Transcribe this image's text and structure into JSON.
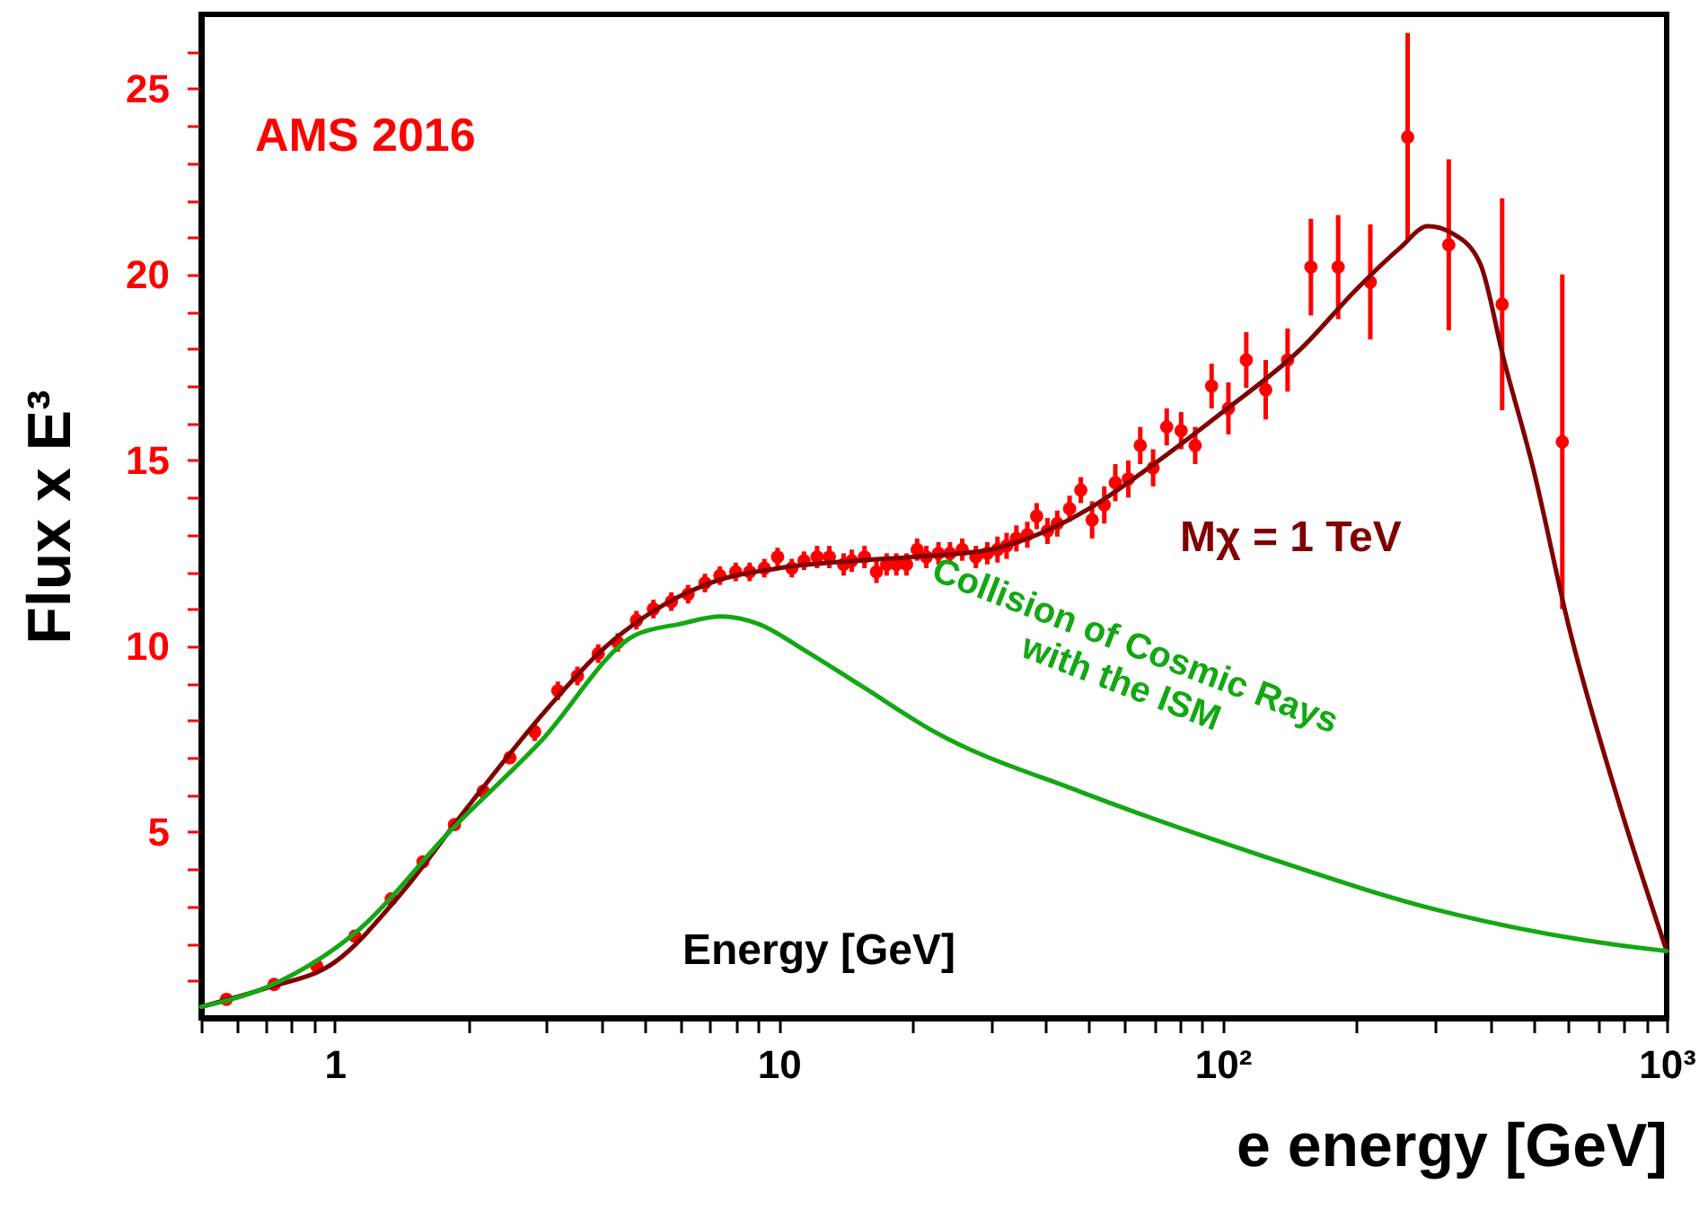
{
  "chart_data": {
    "type": "scatter",
    "xlabel": "e energy [GeV]",
    "ylabel": "Flux x E³",
    "log": "x",
    "grid": false,
    "line_style": "solid",
    "xlim": [
      0.5,
      1000
    ],
    "ylim": [
      0,
      27
    ],
    "xticks": [
      {
        "value": 0.5,
        "label": null
      },
      {
        "value": 0.6,
        "label": null
      },
      {
        "value": 0.7,
        "label": null
      },
      {
        "value": 0.8,
        "label": null
      },
      {
        "value": 0.9,
        "label": null
      },
      1,
      {
        "value": 2,
        "label": null
      },
      {
        "value": 3,
        "label": null
      },
      {
        "value": 4,
        "label": null
      },
      {
        "value": 5,
        "label": null
      },
      {
        "value": 6,
        "label": null
      },
      {
        "value": 7,
        "label": null
      },
      {
        "value": 8,
        "label": null
      },
      {
        "value": 9,
        "label": null
      },
      10,
      {
        "value": 20,
        "label": null
      },
      {
        "value": 30,
        "label": null
      },
      {
        "value": 40,
        "label": null
      },
      {
        "value": 50,
        "label": null
      },
      {
        "value": 60,
        "label": null
      },
      {
        "value": 70,
        "label": null
      },
      {
        "value": 80,
        "label": null
      },
      {
        "value": 90,
        "label": null
      },
      {
        "value": 100,
        "label": "10²"
      },
      {
        "value": 200,
        "label": null
      },
      {
        "value": 300,
        "label": null
      },
      {
        "value": 400,
        "label": null
      },
      {
        "value": 500,
        "label": null
      },
      {
        "value": 600,
        "label": null
      },
      {
        "value": 700,
        "label": null
      },
      {
        "value": 800,
        "label": null
      },
      {
        "value": 900,
        "label": null
      },
      {
        "value": 1000,
        "label": "10³"
      }
    ],
    "yticks": [
      {
        "value": 1,
        "label": null
      },
      {
        "value": 2,
        "label": null
      },
      {
        "value": 3,
        "label": null
      },
      {
        "value": 4,
        "label": null
      },
      5,
      {
        "value": 6,
        "label": null
      },
      {
        "value": 7,
        "label": null
      },
      {
        "value": 8,
        "label": null
      },
      {
        "value": 9,
        "label": null
      },
      10,
      {
        "value": 11,
        "label": null
      },
      {
        "value": 12,
        "label": null
      },
      {
        "value": 13,
        "label": null
      },
      {
        "value": 14,
        "label": null
      },
      15,
      {
        "value": 16,
        "label": null
      },
      {
        "value": 17,
        "label": null
      },
      {
        "value": 18,
        "label": null
      },
      {
        "value": 19,
        "label": null
      },
      20,
      {
        "value": 21,
        "label": null
      },
      {
        "value": 22,
        "label": null
      },
      {
        "value": 23,
        "label": null
      },
      {
        "value": 24,
        "label": null
      },
      25,
      {
        "value": 26,
        "label": null
      }
    ],
    "annotations": [
      "Energy [GeV]"
    ],
    "series": [
      {
        "name": "AMS 2016",
        "type": "scatter",
        "marker": "circle",
        "color": "#ff0000",
        "x": [
          0.57,
          0.73,
          0.91,
          1.11,
          1.34,
          1.58,
          1.86,
          2.16,
          2.48,
          2.82,
          3.18,
          3.52,
          3.92,
          4.34,
          4.78,
          5.22,
          5.73,
          6.25,
          6.82,
          7.37,
          8.0,
          8.6,
          9.28,
          9.94,
          10.7,
          11.4,
          12.2,
          13.0,
          14.0,
          14.6,
          15.6,
          16.6,
          17.5,
          18.4,
          19.4,
          20.5,
          21.5,
          22.9,
          24.3,
          25.9,
          27.8,
          29.5,
          31.1,
          32.6,
          34.3,
          36.3,
          38.1,
          40.3,
          42.4,
          45.2,
          47.9,
          50.8,
          54.1,
          57.3,
          61.3,
          65.2,
          69.7,
          74.8,
          80.6,
          86.7,
          94.4,
          103,
          113,
          125,
          140,
          158,
          182,
          215,
          261,
          323,
          426,
          582
        ],
        "values": [
          0.5,
          0.9,
          1.4,
          2.2,
          3.2,
          4.2,
          5.2,
          6.1,
          7.0,
          7.7,
          8.8,
          9.2,
          9.8,
          10.1,
          10.7,
          11.0,
          11.2,
          11.4,
          11.7,
          11.9,
          12.0,
          12.0,
          12.1,
          12.4,
          12.1,
          12.3,
          12.4,
          12.4,
          12.2,
          12.3,
          12.4,
          12.0,
          12.2,
          12.2,
          12.2,
          12.6,
          12.4,
          12.5,
          12.5,
          12.6,
          12.4,
          12.5,
          12.6,
          12.7,
          12.9,
          13.0,
          13.5,
          13.1,
          13.3,
          13.7,
          14.2,
          13.4,
          13.8,
          14.4,
          14.5,
          15.4,
          14.8,
          15.9,
          15.8,
          15.4,
          17.0,
          16.4,
          17.7,
          16.9,
          17.7,
          20.2,
          20.2,
          19.8,
          23.7,
          20.8,
          19.2,
          15.5
        ],
        "errors": [
          null,
          null,
          null,
          null,
          null,
          null,
          null,
          null,
          null,
          0.25,
          0.25,
          0.25,
          0.25,
          0.25,
          0.25,
          0.25,
          0.25,
          0.25,
          0.25,
          0.25,
          0.25,
          0.25,
          0.25,
          0.25,
          0.25,
          0.25,
          0.3,
          0.3,
          0.3,
          0.3,
          0.3,
          0.3,
          0.3,
          0.3,
          0.3,
          0.3,
          0.3,
          0.3,
          0.3,
          0.3,
          0.3,
          0.3,
          0.35,
          0.35,
          0.35,
          0.35,
          0.35,
          0.35,
          0.35,
          0.35,
          0.35,
          0.5,
          0.5,
          0.5,
          0.5,
          0.5,
          0.5,
          0.5,
          0.5,
          0.5,
          0.6,
          0.7,
          0.75,
          0.8,
          0.85,
          1.3,
          1.4,
          1.55,
          2.8,
          2.3,
          2.85,
          4.5
        ]
      },
      {
        "name": "Mχ = 1 TeV",
        "type": "line",
        "marker": "none",
        "color": "#800000",
        "x": [
          0.5,
          0.7,
          1,
          1.4,
          2,
          3,
          4,
          5,
          7,
          10,
          15,
          20,
          30,
          40,
          50,
          70,
          100,
          150,
          200,
          250,
          290,
          330,
          380,
          430,
          500,
          600,
          780,
          1000
        ],
        "values": [
          0.3,
          0.8,
          1.5,
          3.3,
          5.7,
          8.3,
          9.9,
          10.8,
          11.7,
          12.1,
          12.3,
          12.4,
          12.6,
          13.1,
          13.7,
          14.9,
          16.3,
          18.0,
          19.6,
          20.7,
          21.3,
          21.1,
          20.3,
          17.7,
          14.8,
          10.6,
          5.8,
          1.8
        ]
      },
      {
        "name": "Collision of Cosmic Rays\nwith the ISM",
        "type": "line",
        "marker": "none",
        "color": "#13a813",
        "x": [
          0.5,
          0.71,
          1.14,
          1.81,
          2.89,
          4.75,
          6,
          7.4,
          9,
          11.4,
          15.5,
          22.4,
          47.4,
          120,
          305,
          646,
          1000
        ],
        "values": [
          0.3,
          0.85,
          2.4,
          5.0,
          7.4,
          10.3,
          10.6,
          10.8,
          10.6,
          9.9,
          8.9,
          7.7,
          6.1,
          4.4,
          2.9,
          2.1,
          1.8
        ]
      }
    ]
  }
}
